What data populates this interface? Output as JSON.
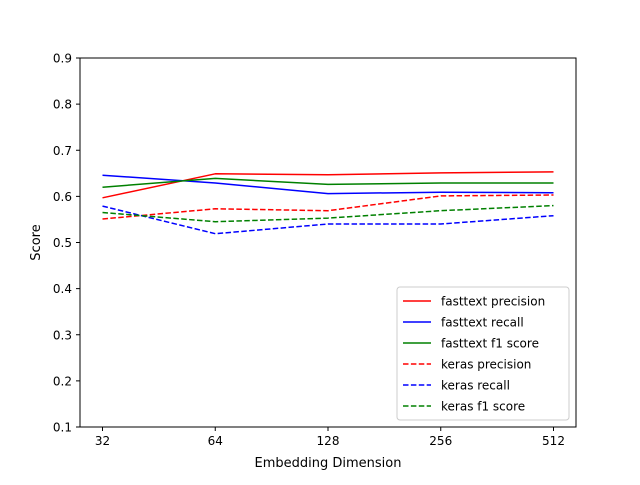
{
  "chart_data": {
    "type": "line",
    "title": "",
    "xlabel": "Embedding Dimension",
    "ylabel": "Score",
    "categories": [
      "32",
      "64",
      "128",
      "256",
      "512"
    ],
    "ylim": [
      0.1,
      0.9
    ],
    "yticks": [
      "0.1",
      "0.2",
      "0.3",
      "0.4",
      "0.5",
      "0.6",
      "0.7",
      "0.8",
      "0.9"
    ],
    "grid": false,
    "legend_position": "bottom-right",
    "series": [
      {
        "name": "fasttext precision",
        "color": "#ff0000",
        "dashed": false,
        "values": [
          0.597,
          0.649,
          0.647,
          0.651,
          0.653
        ]
      },
      {
        "name": "fasttext recall",
        "color": "#0000ff",
        "dashed": false,
        "values": [
          0.646,
          0.629,
          0.606,
          0.609,
          0.608
        ]
      },
      {
        "name": "fasttext f1 score",
        "color": "#008000",
        "dashed": false,
        "values": [
          0.62,
          0.639,
          0.626,
          0.629,
          0.629
        ]
      },
      {
        "name": "keras precision",
        "color": "#ff0000",
        "dashed": true,
        "values": [
          0.551,
          0.573,
          0.569,
          0.601,
          0.603
        ]
      },
      {
        "name": "keras recall",
        "color": "#0000ff",
        "dashed": true,
        "values": [
          0.579,
          0.519,
          0.54,
          0.54,
          0.558
        ]
      },
      {
        "name": "keras f1 score",
        "color": "#008000",
        "dashed": true,
        "values": [
          0.565,
          0.545,
          0.553,
          0.569,
          0.58
        ]
      }
    ]
  }
}
